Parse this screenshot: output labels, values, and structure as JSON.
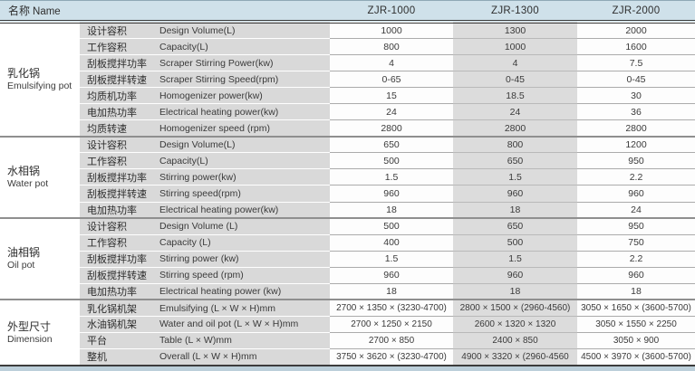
{
  "header": {
    "name_label_cn": "名称",
    "name_label_en": "Name",
    "models": [
      "ZJR-1000",
      "ZJR-1300",
      "ZJR-2000"
    ]
  },
  "colors": {
    "header_bg": "#cfe1ea",
    "label_bg": "#d9d9d9",
    "shaded_column_bg": "#dcdcdc",
    "bottom_strip": "#bccfda"
  },
  "groups": [
    {
      "cn": "乳化锅",
      "en": "Emulsifying pot",
      "rows": [
        {
          "cn": "设计容积",
          "en": "Design Volume(L)",
          "values": [
            "1000",
            "1300",
            "2000"
          ]
        },
        {
          "cn": "工作容积",
          "en": "Capacity(L)",
          "values": [
            "800",
            "1000",
            "1600"
          ]
        },
        {
          "cn": "刮板搅拌功率",
          "en": "Scraper Stirring Power(kw)",
          "values": [
            "4",
            "4",
            "7.5"
          ]
        },
        {
          "cn": "刮板搅拌转速",
          "en": "Scraper Stirring Speed(rpm)",
          "values": [
            "0-65",
            "0-45",
            "0-45"
          ]
        },
        {
          "cn": "均质机功率",
          "en": "Homogenizer power(kw)",
          "values": [
            "15",
            "18.5",
            "30"
          ]
        },
        {
          "cn": "电加热功率",
          "en": "Electrical heating power(kw)",
          "values": [
            "24",
            "24",
            "36"
          ]
        },
        {
          "cn": "均质转速",
          "en": "Homogenizer speed (rpm)",
          "values": [
            "2800",
            "2800",
            "2800"
          ]
        }
      ]
    },
    {
      "cn": "水相锅",
      "en": "Water pot",
      "rows": [
        {
          "cn": "设计容积",
          "en": "Design Volume(L)",
          "values": [
            "650",
            "800",
            "1200"
          ]
        },
        {
          "cn": "工作容积",
          "en": "Capacity(L)",
          "values": [
            "500",
            "650",
            "950"
          ]
        },
        {
          "cn": "刮板搅拌功率",
          "en": "Stirring power(kw)",
          "values": [
            "1.5",
            "1.5",
            "2.2"
          ]
        },
        {
          "cn": "刮板搅拌转速",
          "en": "Stirring speed(rpm)",
          "values": [
            "960",
            "960",
            "960"
          ]
        },
        {
          "cn": "电加热功率",
          "en": "Electrical heating power(kw)",
          "values": [
            "18",
            "18",
            "24"
          ]
        }
      ]
    },
    {
      "cn": "油相锅",
      "en": "Oil pot",
      "rows": [
        {
          "cn": "设计容积",
          "en": "Design Volume (L)",
          "values": [
            "500",
            "650",
            "950"
          ]
        },
        {
          "cn": "工作容积",
          "en": "Capacity (L)",
          "values": [
            "400",
            "500",
            "750"
          ]
        },
        {
          "cn": "刮板搅拌功率",
          "en": "Stirring power (kw)",
          "values": [
            "1.5",
            "1.5",
            "2.2"
          ]
        },
        {
          "cn": "刮板搅拌转速",
          "en": "Stirring speed (rpm)",
          "values": [
            "960",
            "960",
            "960"
          ]
        },
        {
          "cn": "电加热功率",
          "en": "Electrical heating power (kw)",
          "values": [
            "18",
            "18",
            "18"
          ]
        }
      ]
    },
    {
      "cn": "外型尺寸",
      "en": "Dimension",
      "dim": true,
      "rows": [
        {
          "cn": "乳化锅机架",
          "en": "Emulsifying (L × W × H)mm",
          "values": [
            "2700 × 1350 × (3230-4700)",
            "2800 × 1500 × (2960-4560)",
            "3050 × 1650 × (3600-5700)"
          ]
        },
        {
          "cn": "水油锅机架",
          "en": "Water and oil pot (L × W × H)mm",
          "values": [
            "2700 × 1250 × 2150",
            "2600 × 1320 × 1320",
            "3050 × 1550 × 2250"
          ]
        },
        {
          "cn": "平台",
          "en": "Table (L × W)mm",
          "values": [
            "2700 × 850",
            "2400 × 850",
            "3050 × 900"
          ]
        },
        {
          "cn": "整机",
          "en": "Overall (L × W × H)mm",
          "values": [
            "3750 × 3620 × (3230-4700)",
            "4900 × 3320 × (2960-4560",
            "4500 × 3970 × (3600-5700)"
          ]
        }
      ]
    }
  ]
}
